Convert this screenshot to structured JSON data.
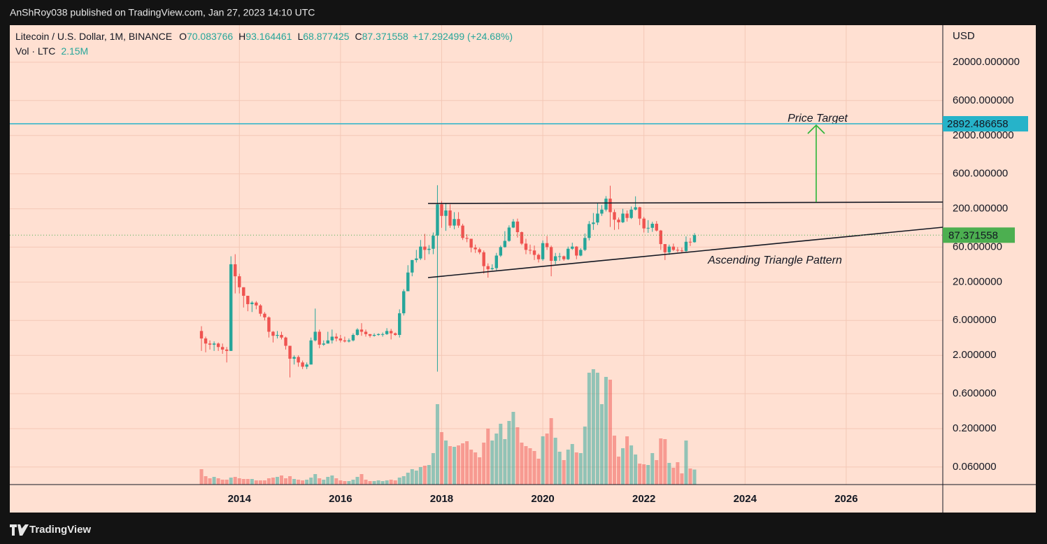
{
  "header": "AnShRoy038 published on TradingView.com, Jan 27, 2023 14:10 UTC",
  "footer": "TradingView",
  "chart_data": {
    "type": "candlestick",
    "title": "Litecoin / U.S. Dollar, 1M, BINANCE",
    "legend": {
      "fields": [
        {
          "label": "O",
          "value": 70.083766
        },
        {
          "label": "H",
          "value": 93.164461
        },
        {
          "label": "L",
          "value": 68.877425
        },
        {
          "label": "C",
          "value": 87.371558
        }
      ],
      "change": "+17.292499 (+24.68%)"
    },
    "volume_legend": {
      "label": "Vol · LTC",
      "value_label": "2.15M"
    },
    "axis_label": "USD",
    "up_color": "#26a69a",
    "down_color": "#ef5350",
    "log_y": true,
    "grid": true,
    "x": [
      "2013-04",
      "2013-05",
      "2013-06",
      "2013-07",
      "2013-08",
      "2013-09",
      "2013-10",
      "2013-11",
      "2013-12",
      "2014-01",
      "2014-02",
      "2014-03",
      "2014-04",
      "2014-05",
      "2014-06",
      "2014-07",
      "2014-08",
      "2014-09",
      "2014-10",
      "2014-11",
      "2014-12",
      "2015-01",
      "2015-02",
      "2015-03",
      "2015-04",
      "2015-05",
      "2015-06",
      "2015-07",
      "2015-08",
      "2015-09",
      "2015-10",
      "2015-11",
      "2015-12",
      "2016-01",
      "2016-02",
      "2016-03",
      "2016-04",
      "2016-05",
      "2016-06",
      "2016-07",
      "2016-08",
      "2016-09",
      "2016-10",
      "2016-11",
      "2016-12",
      "2017-01",
      "2017-02",
      "2017-03",
      "2017-04",
      "2017-05",
      "2017-06",
      "2017-07",
      "2017-08",
      "2017-09",
      "2017-10",
      "2017-11",
      "2017-12",
      "2018-01",
      "2018-02",
      "2018-03",
      "2018-04",
      "2018-05",
      "2018-06",
      "2018-07",
      "2018-08",
      "2018-09",
      "2018-10",
      "2018-11",
      "2018-12",
      "2019-01",
      "2019-02",
      "2019-03",
      "2019-04",
      "2019-05",
      "2019-06",
      "2019-07",
      "2019-08",
      "2019-09",
      "2019-10",
      "2019-11",
      "2019-12",
      "2020-01",
      "2020-02",
      "2020-03",
      "2020-04",
      "2020-05",
      "2020-06",
      "2020-07",
      "2020-08",
      "2020-09",
      "2020-10",
      "2020-11",
      "2020-12",
      "2021-01",
      "2021-02",
      "2021-03",
      "2021-04",
      "2021-05",
      "2021-06",
      "2021-07",
      "2021-08",
      "2021-09",
      "2021-10",
      "2021-11",
      "2021-12",
      "2022-01",
      "2022-02",
      "2022-03",
      "2022-04",
      "2022-05",
      "2022-06",
      "2022-07",
      "2022-08",
      "2022-09",
      "2022-10",
      "2022-11",
      "2022-12",
      "2023-01"
    ],
    "open": [
      4.3,
      3.4,
      2.9,
      2.8,
      2.9,
      2.6,
      2.4,
      2.3,
      35,
      24,
      17,
      13,
      10,
      10.5,
      9.6,
      7.4,
      6.6,
      4.2,
      3.7,
      3.8,
      3.5,
      2.7,
      1.8,
      1.9,
      1.6,
      1.4,
      1.5,
      3.2,
      4.2,
      2.8,
      2.9,
      3.2,
      3.6,
      3.4,
      3.2,
      3.1,
      3.2,
      3.8,
      4.5,
      4.2,
      3.9,
      3.7,
      3.8,
      3.9,
      3.9,
      4.3,
      4.0,
      3.8,
      7.5,
      15,
      27,
      40,
      42,
      61,
      55,
      57,
      86,
      230,
      160,
      190,
      118,
      145,
      118,
      80,
      78,
      59,
      56,
      51,
      33,
      30,
      31,
      46,
      60,
      73,
      111,
      134,
      96,
      67,
      55,
      54,
      47,
      41,
      68,
      60,
      39,
      45,
      45,
      41,
      57,
      61,
      46,
      55,
      80,
      124,
      130,
      172,
      195,
      275,
      180,
      142,
      131,
      172,
      150,
      195,
      210,
      147,
      108,
      110,
      125,
      101,
      66,
      51,
      61,
      55,
      54,
      53,
      71,
      70.083766
    ],
    "high": [
      5.0,
      3.6,
      3.2,
      3.1,
      3.0,
      2.9,
      2.6,
      45,
      48,
      26,
      17,
      13,
      11,
      11,
      10,
      7.8,
      6.8,
      4.3,
      4.3,
      4.2,
      3.6,
      2.7,
      2.0,
      2.0,
      1.7,
      1.6,
      3.5,
      8.7,
      4.5,
      3.2,
      4.2,
      4.5,
      4.0,
      3.8,
      3.6,
      3.4,
      4.0,
      4.7,
      5.5,
      4.5,
      3.9,
      4.0,
      4.0,
      4.1,
      4.7,
      4.6,
      4.1,
      8.5,
      16,
      34,
      40,
      55,
      75,
      91,
      64,
      95,
      420,
      255,
      240,
      230,
      180,
      180,
      125,
      90,
      78,
      65,
      59,
      54,
      36,
      35,
      50,
      63,
      99,
      119,
      145,
      147,
      98,
      78,
      65,
      63,
      49,
      74,
      85,
      63,
      50,
      50,
      46,
      61,
      69,
      62,
      58,
      92,
      136,
      175,
      240,
      225,
      298,
      413,
      196,
      152,
      200,
      190,
      215,
      296,
      213,
      155,
      140,
      133,
      136,
      103,
      66,
      65,
      67,
      60,
      59,
      84,
      80,
      93.164461
    ],
    "low": [
      2.3,
      2.2,
      2.4,
      2.3,
      2.3,
      2.1,
      1.6,
      2.3,
      14,
      14,
      9,
      8,
      7.8,
      8.5,
      6.8,
      6,
      3.5,
      3.0,
      3.4,
      3.3,
      2.4,
      1.0,
      1.5,
      1.4,
      1.3,
      1.3,
      1.5,
      3.1,
      2.5,
      2.7,
      2.9,
      2.9,
      3.1,
      3.0,
      3.0,
      3.0,
      3.1,
      3.7,
      3.7,
      3.6,
      3.5,
      3.6,
      3.7,
      3.6,
      3.8,
      3.3,
      3.7,
      3.5,
      7.0,
      15,
      24,
      37,
      40,
      40,
      48,
      48,
      1.2,
      110,
      100,
      110,
      105,
      110,
      75,
      70,
      51,
      50,
      48,
      26,
      23,
      29,
      29,
      44,
      59,
      71,
      109,
      81,
      64,
      48,
      48,
      40,
      37,
      39,
      55,
      24,
      35,
      39,
      39,
      40,
      55,
      41,
      45,
      53,
      74,
      103,
      120,
      160,
      184,
      113,
      103,
      105,
      128,
      134,
      145,
      190,
      120,
      95,
      94,
      97,
      98,
      55,
      40,
      47,
      53,
      51,
      50,
      51,
      62,
      68.877425
    ],
    "close": [
      3.4,
      2.9,
      2.8,
      2.9,
      2.6,
      2.4,
      2.3,
      35,
      24,
      17,
      13,
      10,
      10.5,
      9.6,
      7.4,
      6.6,
      4.2,
      3.7,
      3.8,
      3.5,
      2.7,
      1.8,
      1.9,
      1.6,
      1.4,
      1.5,
      3.2,
      4.2,
      2.8,
      2.9,
      3.2,
      3.6,
      3.4,
      3.2,
      3.1,
      3.2,
      3.8,
      4.5,
      4.2,
      3.9,
      3.7,
      3.8,
      3.9,
      3.9,
      4.3,
      4.0,
      3.8,
      7.5,
      15,
      27,
      40,
      42,
      61,
      55,
      57,
      86,
      230,
      160,
      190,
      118,
      145,
      118,
      80,
      78,
      59,
      56,
      51,
      33,
      30,
      31,
      46,
      60,
      73,
      111,
      134,
      96,
      67,
      55,
      54,
      47,
      41,
      68,
      60,
      39,
      45,
      45,
      41,
      57,
      61,
      46,
      55,
      80,
      124,
      130,
      172,
      195,
      275,
      180,
      142,
      131,
      172,
      150,
      195,
      210,
      147,
      108,
      110,
      125,
      101,
      66,
      51,
      61,
      55,
      54,
      53,
      71,
      70.083766,
      87.371558
    ],
    "volume": [
      2200000,
      1200000,
      900000,
      1100000,
      900000,
      700000,
      700000,
      1000000,
      1100000,
      900000,
      800000,
      800000,
      800000,
      600000,
      600000,
      600000,
      900000,
      1000000,
      1100000,
      1300000,
      900000,
      1200000,
      800000,
      700000,
      600000,
      700000,
      1000000,
      1500000,
      900000,
      700000,
      1100000,
      1300000,
      900000,
      600000,
      500000,
      500000,
      700000,
      1100000,
      1500000,
      700000,
      500000,
      500000,
      600000,
      500000,
      600000,
      700000,
      600000,
      1000000,
      1200000,
      1700000,
      2200000,
      2000000,
      2500000,
      2700000,
      2800000,
      4500000,
      11500000,
      7500000,
      6300000,
      5500000,
      5400000,
      5600000,
      5900000,
      6200000,
      5000000,
      4600000,
      3900000,
      6000000,
      8000000,
      6300000,
      7300000,
      8700000,
      6500000,
      9100000,
      10400000,
      8200000,
      6000000,
      5500000,
      5200000,
      4800000,
      3700000,
      6900000,
      7300000,
      9500000,
      6700000,
      4700000,
      3500000,
      5000000,
      5800000,
      4600000,
      4500000,
      8300000,
      16000000,
      16500000,
      16000000,
      11500000,
      15400000,
      15000000,
      7000000,
      4000000,
      5200000,
      6900000,
      5600000,
      4300000,
      3000000,
      2900000,
      2800000,
      4500000,
      3500000,
      6600000,
      6500000,
      3100000,
      2400000,
      3200000,
      1600000,
      6300000,
      2300000,
      2150000
    ],
    "xlim": [
      2009.46,
      2027.91
    ],
    "xticks": [
      2014,
      2016,
      2018,
      2020,
      2022,
      2024,
      2026
    ],
    "ylim": [
      0.0345,
      64100
    ],
    "yticks": [
      {
        "value": 0.06,
        "label": "0.060000"
      },
      {
        "value": 0.2,
        "label": "0.200000"
      },
      {
        "value": 0.6,
        "label": "0.600000"
      },
      {
        "value": 2,
        "label": "2.000000"
      },
      {
        "value": 6,
        "label": "6.000000"
      },
      {
        "value": 20,
        "label": "20.000000"
      },
      {
        "value": 60,
        "label": "60.000000"
      },
      {
        "value": 200,
        "label": "200.000000"
      },
      {
        "value": 600,
        "label": "600.000000"
      },
      {
        "value": 2000,
        "label": "2000.000000"
      },
      {
        "value": 6000,
        "label": "6000.000000"
      },
      {
        "value": 20000,
        "label": "20000.000000"
      }
    ],
    "horizontal_line": {
      "value": 2892.486658,
      "color": "#26b3c9"
    },
    "last_price_color": "#4caf50",
    "annotations": [
      "Price Target",
      "Ascending Triangle Pattern"
    ]
  }
}
